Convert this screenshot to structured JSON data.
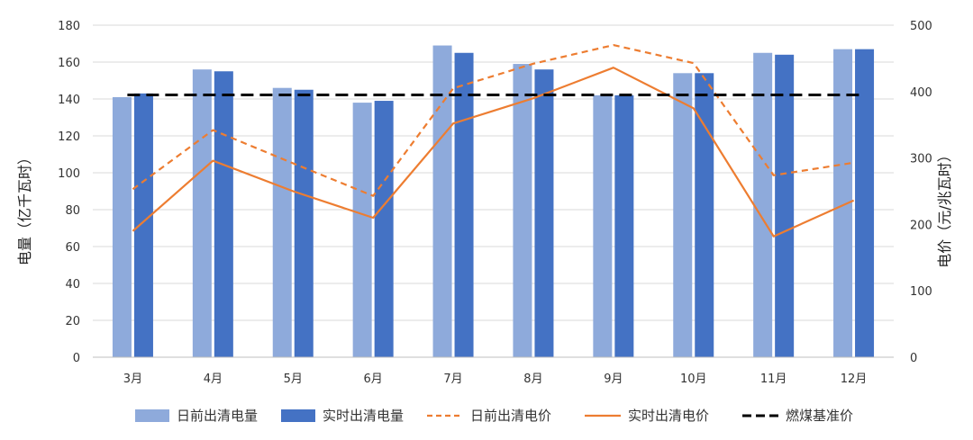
{
  "chart_data": {
    "type": "bar",
    "title": "",
    "categories": [
      "3月",
      "4月",
      "5月",
      "6月",
      "7月",
      "8月",
      "9月",
      "10月",
      "11月",
      "12月"
    ],
    "bar_series": [
      {
        "name": "日前出清电量",
        "color": "#8eaadb",
        "values": [
          141,
          156,
          146,
          138,
          169,
          159,
          142,
          154,
          165,
          167
        ]
      },
      {
        "name": "实时出清电量",
        "color": "#4472c4",
        "values": [
          143,
          155,
          145,
          139,
          165,
          156,
          142,
          154,
          164,
          167
        ]
      }
    ],
    "line_series": [
      {
        "name": "日前出清电价",
        "color": "#ed7d31",
        "style": "dashed",
        "axis": "right",
        "values": [
          253,
          342,
          292,
          243,
          405,
          442,
          470,
          443,
          274,
          293
        ]
      },
      {
        "name": "实时出清电价",
        "color": "#ed7d31",
        "style": "solid",
        "axis": "right",
        "values": [
          190,
          296,
          250,
          210,
          352,
          390,
          436,
          375,
          182,
          236
        ]
      },
      {
        "name": "燃煤基准价",
        "color": "#000000",
        "style": "dashed",
        "axis": "right",
        "values": [
          395,
          395,
          395,
          395,
          395,
          395,
          395,
          395,
          395,
          395
        ]
      }
    ],
    "ylabel_left": "电量（亿千瓦时）",
    "ylabel_right": "电价（元/兆瓦时）",
    "ylim_left": [
      0,
      180
    ],
    "yticks_left": [
      0,
      20,
      40,
      60,
      80,
      100,
      120,
      140,
      160,
      180
    ],
    "ylim_right": [
      0,
      500
    ],
    "yticks_right": [
      0,
      100,
      200,
      300,
      400,
      500
    ],
    "grid": true,
    "legend_position": "bottom"
  }
}
